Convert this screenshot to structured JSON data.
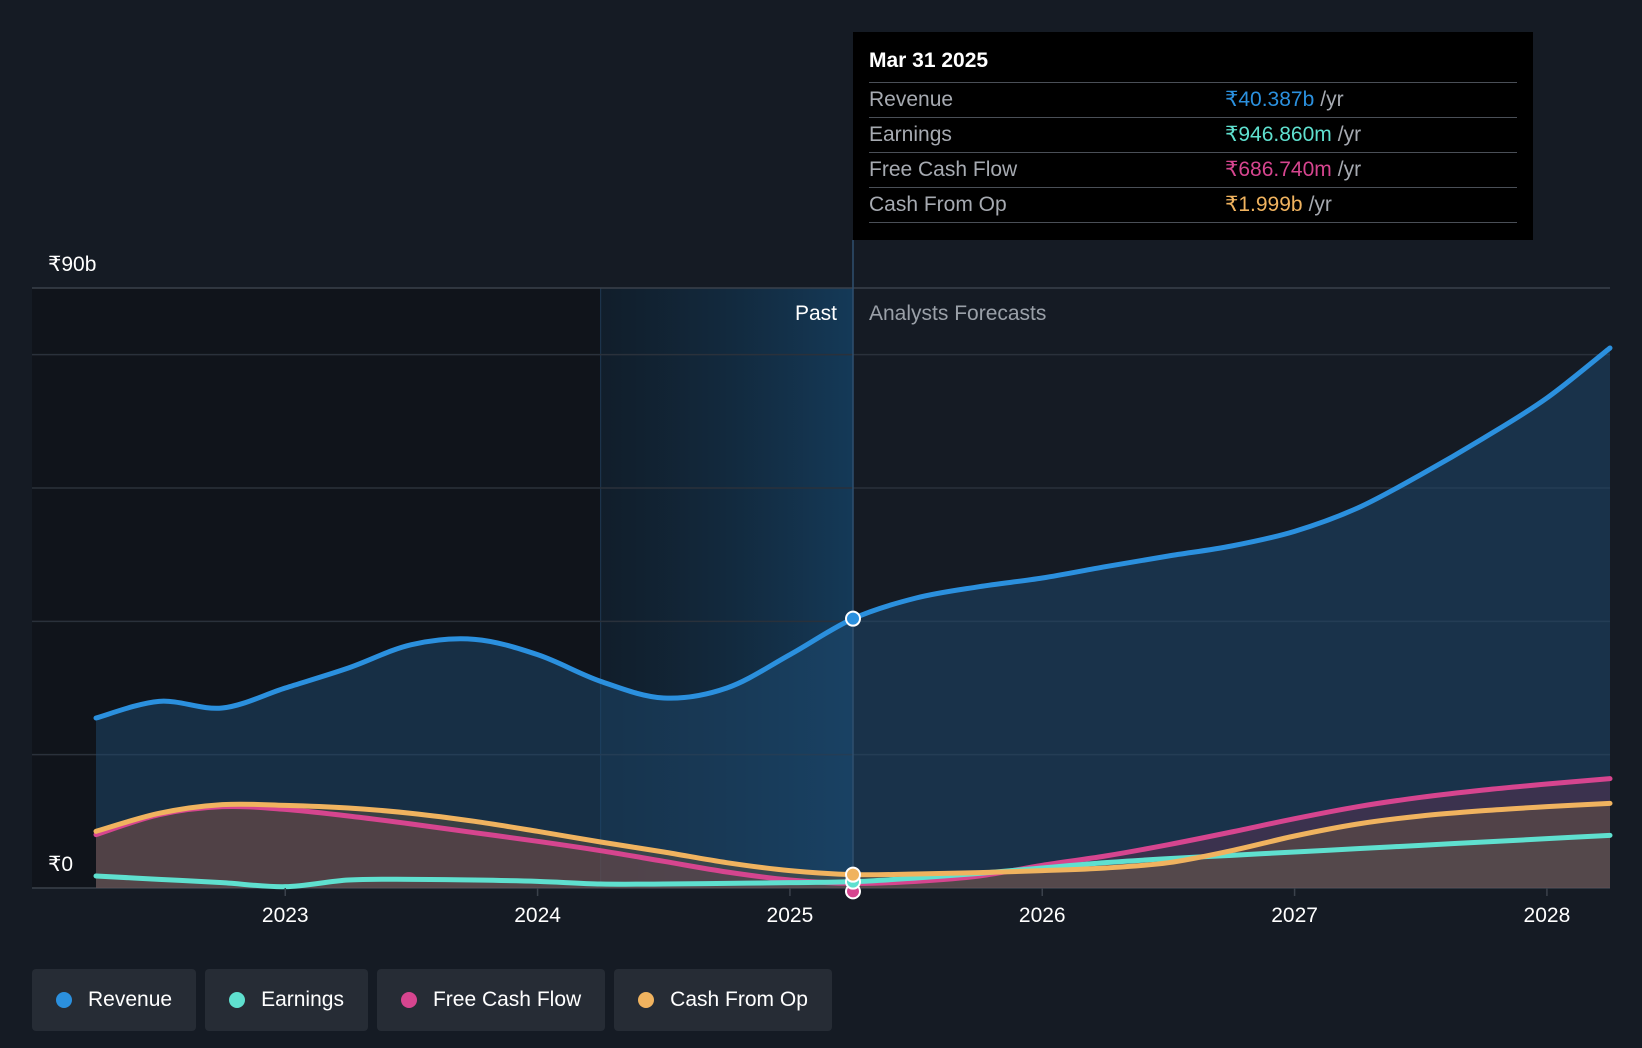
{
  "tooltip": {
    "date": "Mar 31 2025",
    "rows": [
      {
        "label": "Revenue",
        "value": "₹40.387b",
        "unit": "/yr",
        "color": "#2b90de"
      },
      {
        "label": "Earnings",
        "value": "₹946.860m",
        "unit": "/yr",
        "color": "#5fe0cf"
      },
      {
        "label": "Free Cash Flow",
        "value": "₹686.740m",
        "unit": "/yr",
        "color": "#d6458f"
      },
      {
        "label": "Cash From Op",
        "value": "₹1.999b",
        "unit": "/yr",
        "color": "#f0b35f"
      }
    ]
  },
  "legend": [
    {
      "label": "Revenue",
      "color": "#2b90de"
    },
    {
      "label": "Earnings",
      "color": "#5fe0cf"
    },
    {
      "label": "Free Cash Flow",
      "color": "#d6458f"
    },
    {
      "label": "Cash From Op",
      "color": "#f0b35f"
    }
  ],
  "chart_data": {
    "type": "area",
    "title": "",
    "xlabel": "",
    "ylabel": "",
    "ylim": [
      0,
      90
    ],
    "xlim": [
      2022.24,
      2028.25
    ],
    "y_tick_labels": [
      {
        "value": 90,
        "label": "₹90b"
      },
      {
        "value": 0,
        "label": "₹0"
      }
    ],
    "gridline_values": [
      0,
      20,
      40,
      60,
      80,
      90
    ],
    "x_ticks": [
      {
        "value": 2023,
        "label": "2023"
      },
      {
        "value": 2024,
        "label": "2024"
      },
      {
        "value": 2025,
        "label": "2025"
      },
      {
        "value": 2026,
        "label": "2026"
      },
      {
        "value": 2027,
        "label": "2027"
      },
      {
        "value": 2028,
        "label": "2028"
      }
    ],
    "past_label": "Past",
    "forecast_label": "Analysts Forecasts",
    "divider_x": 2025.25,
    "highlight_start_x": 2024.25,
    "highlight_value_date": "Mar 31 2025",
    "series": [
      {
        "name": "Revenue",
        "color": "#2b90de",
        "points": [
          [
            2022.25,
            25.5
          ],
          [
            2022.5,
            28
          ],
          [
            2022.75,
            27
          ],
          [
            2023,
            30
          ],
          [
            2023.25,
            33
          ],
          [
            2023.5,
            36.5
          ],
          [
            2023.75,
            37.3
          ],
          [
            2024,
            35
          ],
          [
            2024.25,
            31
          ],
          [
            2024.5,
            28.5
          ],
          [
            2024.75,
            30
          ],
          [
            2025,
            35
          ],
          [
            2025.25,
            40.4
          ],
          [
            2025.5,
            43.5
          ],
          [
            2025.75,
            45.2
          ],
          [
            2026,
            46.5
          ],
          [
            2026.25,
            48.2
          ],
          [
            2026.5,
            49.8
          ],
          [
            2026.75,
            51.3
          ],
          [
            2027,
            53.5
          ],
          [
            2027.25,
            57
          ],
          [
            2027.5,
            62
          ],
          [
            2027.75,
            67.5
          ],
          [
            2028,
            73.5
          ],
          [
            2028.25,
            81
          ]
        ]
      },
      {
        "name": "Earnings",
        "color": "#5fe0cf",
        "points": [
          [
            2022.25,
            1.8
          ],
          [
            2022.5,
            1.3
          ],
          [
            2022.75,
            0.8
          ],
          [
            2023,
            0.2
          ],
          [
            2023.25,
            1.2
          ],
          [
            2023.5,
            1.3
          ],
          [
            2023.75,
            1.2
          ],
          [
            2024,
            1.0
          ],
          [
            2024.25,
            0.6
          ],
          [
            2024.5,
            0.6
          ],
          [
            2024.75,
            0.7
          ],
          [
            2025,
            0.8
          ],
          [
            2025.25,
            0.95
          ],
          [
            2025.5,
            1.5
          ],
          [
            2025.75,
            2.2
          ],
          [
            2026,
            3.0
          ],
          [
            2026.25,
            3.8
          ],
          [
            2026.5,
            4.4
          ],
          [
            2026.75,
            4.9
          ],
          [
            2027,
            5.4
          ],
          [
            2027.25,
            5.9
          ],
          [
            2027.5,
            6.4
          ],
          [
            2027.75,
            6.9
          ],
          [
            2028,
            7.4
          ],
          [
            2028.25,
            7.9
          ]
        ]
      },
      {
        "name": "Free Cash Flow",
        "color": "#d6458f",
        "points": [
          [
            2022.25,
            8
          ],
          [
            2022.5,
            11
          ],
          [
            2022.75,
            12.2
          ],
          [
            2023,
            11.8
          ],
          [
            2023.25,
            10.8
          ],
          [
            2023.5,
            9.6
          ],
          [
            2023.75,
            8.3
          ],
          [
            2024,
            7
          ],
          [
            2024.25,
            5.6
          ],
          [
            2024.5,
            4
          ],
          [
            2024.75,
            2.4
          ],
          [
            2025,
            1.2
          ],
          [
            2025.25,
            0.69
          ],
          [
            2025.5,
            1.0
          ],
          [
            2025.75,
            1.8
          ],
          [
            2026,
            3.4
          ],
          [
            2026.25,
            4.8
          ],
          [
            2026.5,
            6.5
          ],
          [
            2026.75,
            8.4
          ],
          [
            2027,
            10.4
          ],
          [
            2027.25,
            12.2
          ],
          [
            2027.5,
            13.6
          ],
          [
            2027.75,
            14.7
          ],
          [
            2028,
            15.6
          ],
          [
            2028.25,
            16.4
          ]
        ]
      },
      {
        "name": "Cash From Op",
        "color": "#f0b35f",
        "points": [
          [
            2022.25,
            8.5
          ],
          [
            2022.5,
            11.2
          ],
          [
            2022.75,
            12.5
          ],
          [
            2023,
            12.4
          ],
          [
            2023.25,
            12
          ],
          [
            2023.5,
            11.2
          ],
          [
            2023.75,
            10
          ],
          [
            2024,
            8.5
          ],
          [
            2024.25,
            6.9
          ],
          [
            2024.5,
            5.4
          ],
          [
            2024.75,
            3.8
          ],
          [
            2025,
            2.6
          ],
          [
            2025.25,
            2.0
          ],
          [
            2025.5,
            2.1
          ],
          [
            2025.75,
            2.3
          ],
          [
            2026,
            2.6
          ],
          [
            2026.25,
            3.0
          ],
          [
            2026.5,
            3.8
          ],
          [
            2026.75,
            5.6
          ],
          [
            2027,
            7.8
          ],
          [
            2027.25,
            9.6
          ],
          [
            2027.5,
            10.8
          ],
          [
            2027.75,
            11.6
          ],
          [
            2028,
            12.2
          ],
          [
            2028.25,
            12.7
          ]
        ]
      }
    ]
  }
}
